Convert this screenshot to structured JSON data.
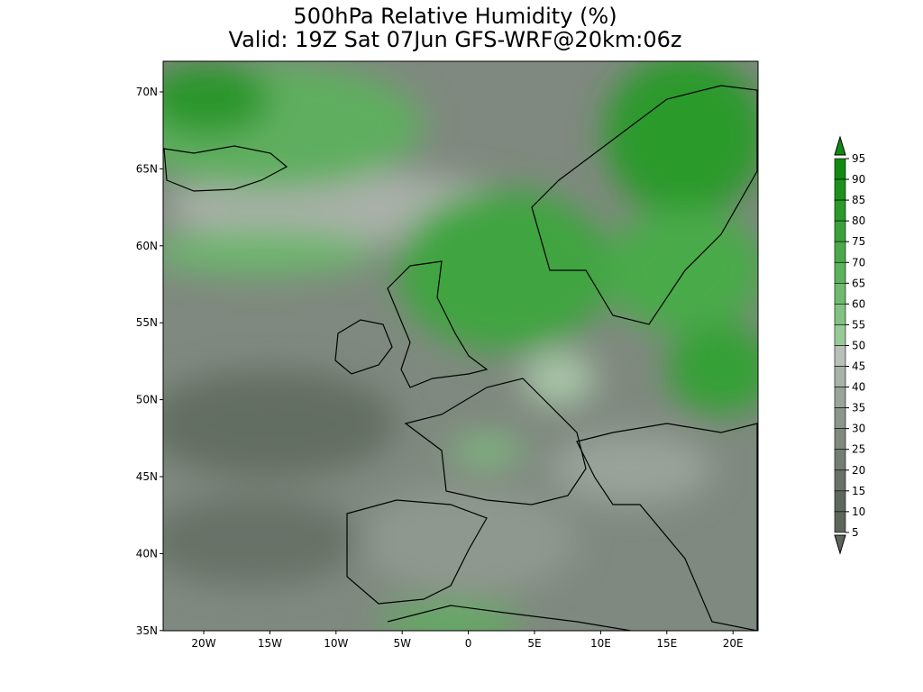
{
  "header": {
    "title": "500hPa Relative Humidity (%)",
    "subtitle": "Valid: 19Z Sat 07Jun GFS-WRF@20km:06z"
  },
  "map": {
    "lat_labels": [
      "70N",
      "65N",
      "60N",
      "55N",
      "50N",
      "45N",
      "40N",
      "35N"
    ],
    "lon_labels": [
      "20W",
      "15W",
      "10W",
      "5W",
      "0",
      "5E",
      "10E",
      "15E",
      "20E"
    ]
  },
  "colorbar": {
    "labels": [
      "95",
      "90",
      "85",
      "80",
      "75",
      "70",
      "65",
      "60",
      "55",
      "50",
      "45",
      "40",
      "35",
      "30",
      "25",
      "20",
      "15",
      "10",
      "5"
    ]
  }
}
